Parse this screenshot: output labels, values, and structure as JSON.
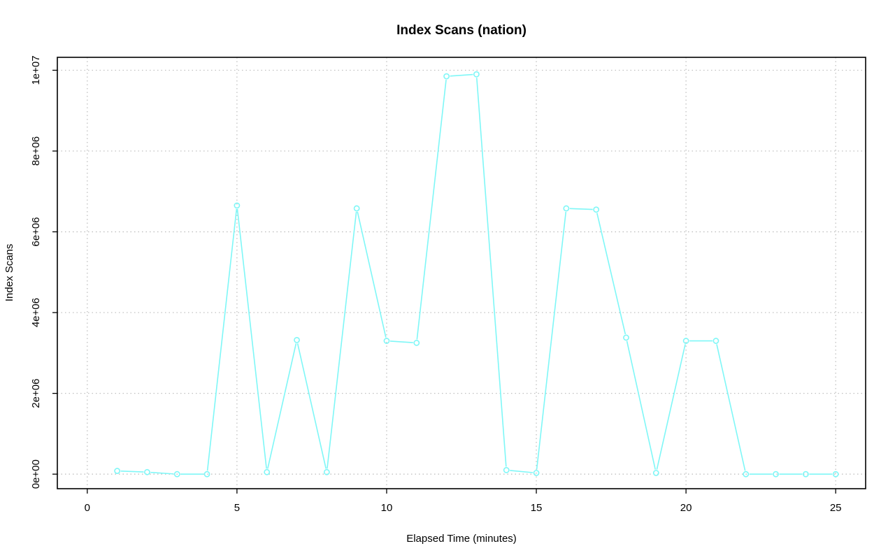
{
  "chart_data": {
    "type": "line",
    "title": "Index Scans (nation)",
    "xlabel": "Elapsed Time (minutes)",
    "ylabel": "Index Scans",
    "xlim": [
      -1,
      26
    ],
    "ylim": [
      -360000,
      10320000
    ],
    "x_ticks": [
      0,
      5,
      10,
      15,
      20,
      25
    ],
    "x_tick_labels": [
      "0",
      "5",
      "10",
      "15",
      "20",
      "25"
    ],
    "y_ticks": [
      0,
      2000000,
      4000000,
      6000000,
      8000000,
      10000000
    ],
    "y_tick_labels": [
      "0e+00",
      "2e+06",
      "4e+06",
      "6e+06",
      "8e+06",
      "1e+07"
    ],
    "grid": true,
    "color": "#7ff7f7",
    "series": [
      {
        "x": [
          1,
          2,
          3,
          4,
          5,
          6,
          7,
          8,
          9,
          10,
          11,
          12,
          13,
          14,
          15,
          16,
          17,
          18,
          19,
          20,
          21,
          22,
          23,
          24,
          25
        ],
        "values": [
          80000,
          50000,
          0,
          0,
          6650000,
          50000,
          3320000,
          50000,
          6580000,
          3300000,
          3250000,
          9850000,
          9900000,
          100000,
          30000,
          6580000,
          6550000,
          3380000,
          30000,
          3300000,
          3300000,
          0,
          0,
          0,
          0
        ]
      }
    ]
  }
}
